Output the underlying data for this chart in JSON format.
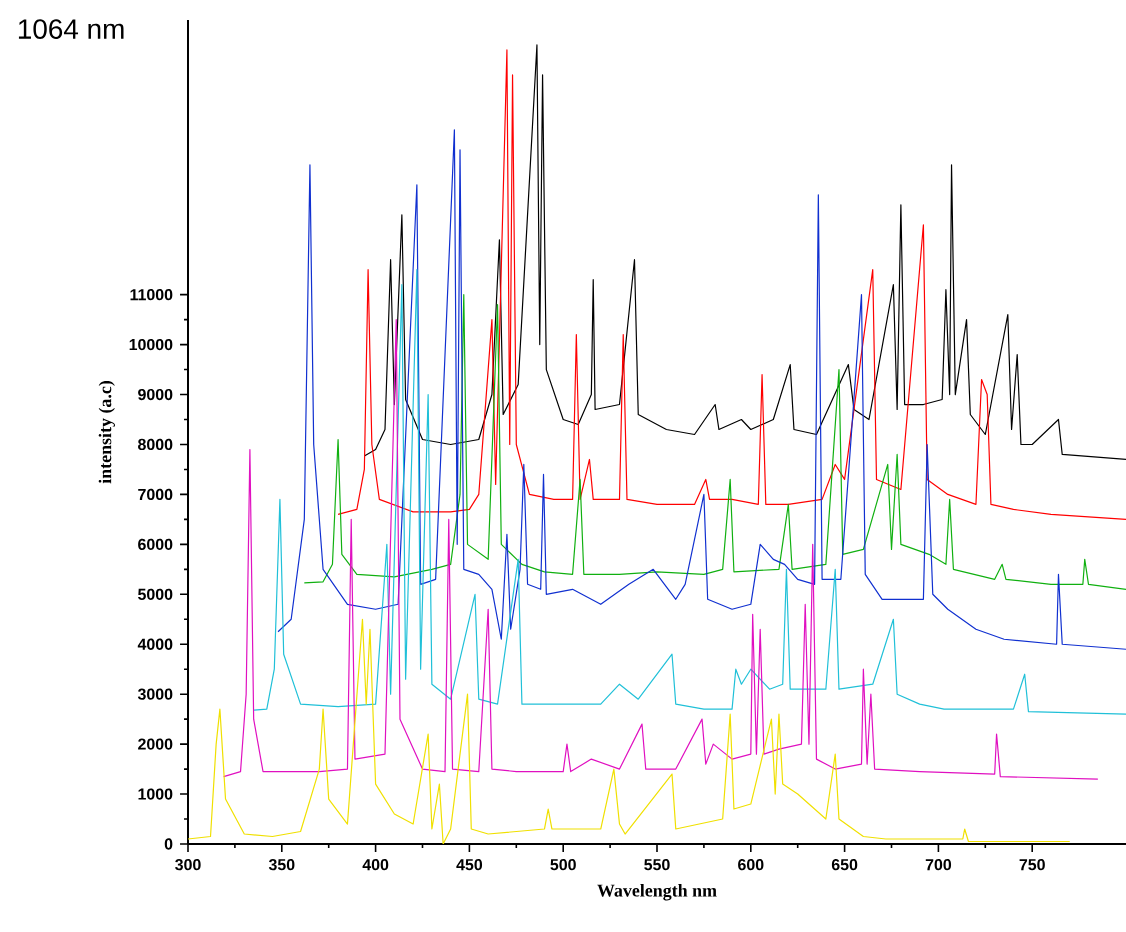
{
  "chart_data": {
    "type": "line",
    "title": "1064 nm",
    "xlabel": "Wavelength nm",
    "ylabel": "intensity (a.c)",
    "xlim": [
      300,
      800
    ],
    "ylim": [
      0,
      16500
    ],
    "xticks": [
      300,
      350,
      400,
      450,
      500,
      550,
      600,
      650,
      700,
      750
    ],
    "yticks": [
      0,
      1000,
      2000,
      3000,
      4000,
      5000,
      6000,
      7000,
      8000,
      9000,
      10000,
      11000
    ],
    "series": [
      {
        "color": "#000000",
        "x": [
          394,
          400,
          405,
          408,
          410,
          414,
          416,
          425,
          440,
          455,
          462,
          466,
          468,
          476,
          486,
          487.5,
          489,
          491,
          500,
          508,
          515,
          516,
          517,
          530,
          538,
          540,
          555,
          570,
          581,
          583,
          595,
          600,
          612,
          621,
          623,
          635,
          652,
          655,
          663,
          676,
          678,
          680,
          682,
          692,
          702,
          704,
          706,
          707,
          709,
          715,
          717,
          725,
          737,
          739,
          742,
          744,
          750,
          764,
          766,
          800
        ],
        "values": [
          7770,
          7900,
          8300,
          11700,
          8800,
          12600,
          8900,
          8100,
          8000,
          8100,
          9000,
          12100,
          8600,
          9200,
          16000,
          10000,
          15400,
          9500,
          8500,
          8400,
          9000,
          11300,
          8700,
          8800,
          11700,
          8600,
          8300,
          8200,
          8800,
          8300,
          8500,
          8300,
          8500,
          9600,
          8300,
          8200,
          9600,
          8700,
          8500,
          11200,
          8700,
          12800,
          8800,
          8800,
          8900,
          11100,
          9000,
          13600,
          9000,
          10500,
          8600,
          8200,
          10600,
          8300,
          9800,
          8000,
          8000,
          8500,
          7800,
          7700
        ]
      },
      {
        "color": "#ff0000",
        "x": [
          380,
          390,
          394,
          396,
          398,
          402,
          420,
          440,
          450,
          455,
          462,
          464,
          470,
          471.5,
          473,
          475,
          482,
          495,
          505,
          507,
          509,
          514,
          516,
          530,
          532,
          534,
          550,
          570,
          576,
          578,
          590,
          604,
          606,
          608,
          620,
          638,
          645,
          650,
          665,
          667,
          680,
          692,
          694,
          705,
          720,
          723,
          726,
          728,
          740,
          760,
          800
        ],
        "values": [
          6600,
          6700,
          7500,
          11500,
          8000,
          6900,
          6650,
          6650,
          6700,
          7000,
          10500,
          7200,
          15900,
          8000,
          15400,
          8000,
          7000,
          6900,
          6900,
          10200,
          6900,
          7700,
          6900,
          6900,
          10200,
          6900,
          6800,
          6800,
          7300,
          6900,
          6900,
          6800,
          9400,
          6800,
          6800,
          6900,
          7600,
          7300,
          11500,
          7300,
          7100,
          12400,
          7300,
          7000,
          6800,
          9300,
          9000,
          6800,
          6700,
          6600,
          6500
        ]
      },
      {
        "color": "#10b010",
        "x": [
          362,
          372,
          377,
          380,
          382,
          390,
          410,
          430,
          440,
          445,
          447,
          449,
          460,
          465,
          467,
          478,
          490,
          505,
          509,
          511,
          530,
          550,
          575,
          585,
          589,
          591,
          615,
          620,
          622,
          640,
          647,
          649,
          660,
          673,
          675,
          678,
          680,
          695,
          704,
          706,
          708,
          730,
          734,
          736,
          760,
          777,
          778,
          780,
          800
        ],
        "values": [
          5230,
          5250,
          5600,
          8100,
          5800,
          5400,
          5350,
          5500,
          5600,
          7000,
          11000,
          6000,
          5700,
          10800,
          6000,
          5600,
          5450,
          5400,
          7300,
          5400,
          5400,
          5450,
          5400,
          5500,
          7300,
          5450,
          5500,
          6800,
          5500,
          5600,
          9500,
          5800,
          5900,
          7600,
          5900,
          7800,
          6000,
          5800,
          5600,
          6900,
          5500,
          5300,
          5600,
          5300,
          5200,
          5200,
          5700,
          5200,
          5100
        ]
      },
      {
        "color": "#1030d0",
        "x": [
          348,
          355,
          362,
          365,
          367,
          372,
          385,
          400,
          412,
          422,
          424,
          432,
          442,
          443.5,
          445,
          447,
          455,
          462,
          467,
          470,
          472,
          477,
          479,
          481,
          488,
          489.5,
          491,
          505,
          520,
          535,
          548,
          560,
          565,
          575,
          577,
          590,
          600,
          605,
          612,
          618,
          625,
          634,
          636,
          638,
          648,
          659,
          661,
          670,
          685,
          692,
          694,
          697,
          705,
          720,
          735,
          763,
          764,
          766,
          800
        ],
        "values": [
          4250,
          4500,
          6500,
          13600,
          8000,
          5500,
          4800,
          4700,
          4800,
          13200,
          5200,
          5300,
          14300,
          6000,
          13900,
          5500,
          5400,
          5100,
          4100,
          6200,
          4300,
          5500,
          7600,
          5200,
          5100,
          7400,
          5000,
          5100,
          4800,
          5200,
          5500,
          4900,
          5200,
          7000,
          4900,
          4700,
          4800,
          6000,
          5700,
          5600,
          5300,
          5200,
          13000,
          5300,
          5300,
          11000,
          5400,
          4900,
          4900,
          4900,
          8000,
          5000,
          4700,
          4300,
          4100,
          4000,
          5400,
          4000,
          3900
        ]
      },
      {
        "color": "#20c0d8",
        "x": [
          335,
          342,
          346,
          349,
          351,
          360,
          380,
          400,
          406,
          408,
          414,
          416,
          422,
          424,
          428,
          430,
          440,
          453,
          455,
          465,
          476,
          478,
          490,
          520,
          530,
          540,
          558,
          560,
          575,
          590,
          592,
          595,
          600,
          610,
          617,
          619,
          621,
          640,
          645,
          647,
          665,
          676,
          678,
          690,
          703,
          740,
          746,
          748,
          800
        ],
        "values": [
          2680,
          2700,
          3500,
          6900,
          3800,
          2800,
          2750,
          2800,
          6000,
          3000,
          11200,
          3300,
          11500,
          3500,
          9000,
          3200,
          2900,
          5000,
          2900,
          2800,
          5700,
          2800,
          2800,
          2800,
          3200,
          2900,
          3800,
          2800,
          2700,
          2700,
          3500,
          3200,
          3500,
          3100,
          3200,
          5500,
          3100,
          3100,
          5500,
          3100,
          3200,
          4500,
          3000,
          2800,
          2700,
          2700,
          3400,
          2650,
          2600
        ]
      },
      {
        "color": "#e010c0",
        "x": [
          319,
          328,
          331,
          333,
          335,
          340,
          370,
          385,
          387,
          389,
          405,
          411,
          413,
          425,
          437,
          439,
          441,
          455,
          460,
          462,
          475,
          500,
          502,
          504,
          515,
          530,
          542,
          544,
          560,
          574,
          576,
          580,
          590,
          600,
          601,
          603,
          605,
          607,
          615,
          627,
          629,
          631,
          633,
          635,
          645,
          659,
          660,
          662,
          664,
          666,
          690,
          730,
          731,
          733,
          785
        ],
        "values": [
          1350,
          1450,
          3000,
          7900,
          2500,
          1450,
          1450,
          1500,
          6500,
          1700,
          1800,
          10500,
          2500,
          1500,
          1450,
          6500,
          1500,
          1450,
          4700,
          1500,
          1450,
          1450,
          2000,
          1450,
          1700,
          1500,
          2400,
          1500,
          1500,
          2500,
          1600,
          2000,
          1700,
          1800,
          4600,
          1800,
          4300,
          1800,
          1900,
          2000,
          4800,
          2000,
          6000,
          1700,
          1500,
          1600,
          3500,
          1600,
          3000,
          1500,
          1450,
          1400,
          2200,
          1350,
          1300
        ]
      },
      {
        "color": "#f0e000",
        "x": [
          300,
          312,
          315,
          317,
          320,
          330,
          345,
          360,
          370,
          372,
          375,
          385,
          393,
          395,
          397,
          400,
          410,
          420,
          428,
          430,
          434,
          436,
          440,
          449,
          451,
          460,
          490,
          492,
          494,
          520,
          527,
          530,
          533,
          558,
          560,
          585,
          589,
          591,
          600,
          611,
          613,
          615,
          617,
          625,
          640,
          645,
          647,
          660,
          672,
          713,
          714,
          716,
          770
        ],
        "values": [
          100,
          150,
          2000,
          2700,
          900,
          200,
          150,
          250,
          1500,
          2700,
          900,
          400,
          4500,
          2800,
          4300,
          1200,
          600,
          400,
          2200,
          300,
          1200,
          0,
          300,
          3000,
          300,
          200,
          300,
          700,
          300,
          300,
          1500,
          400,
          200,
          1400,
          300,
          500,
          2600,
          700,
          800,
          2500,
          1000,
          2600,
          1200,
          1000,
          500,
          1800,
          500,
          150,
          100,
          100,
          300,
          50,
          50
        ]
      }
    ]
  }
}
